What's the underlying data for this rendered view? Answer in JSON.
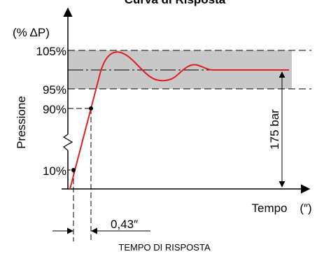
{
  "title": "Curva di Risposta",
  "y_axis": {
    "unit": "(% ΔP)",
    "label": "Pressione",
    "levels": [
      "105%",
      "95%",
      "90%",
      "10%"
    ]
  },
  "x_axis": {
    "label": "Tempo",
    "unit": "(″)"
  },
  "annotations": {
    "pressure": "175 bar",
    "response_time": "0,43″",
    "response_caption": "TEMPO DI RISPOSTA"
  }
}
